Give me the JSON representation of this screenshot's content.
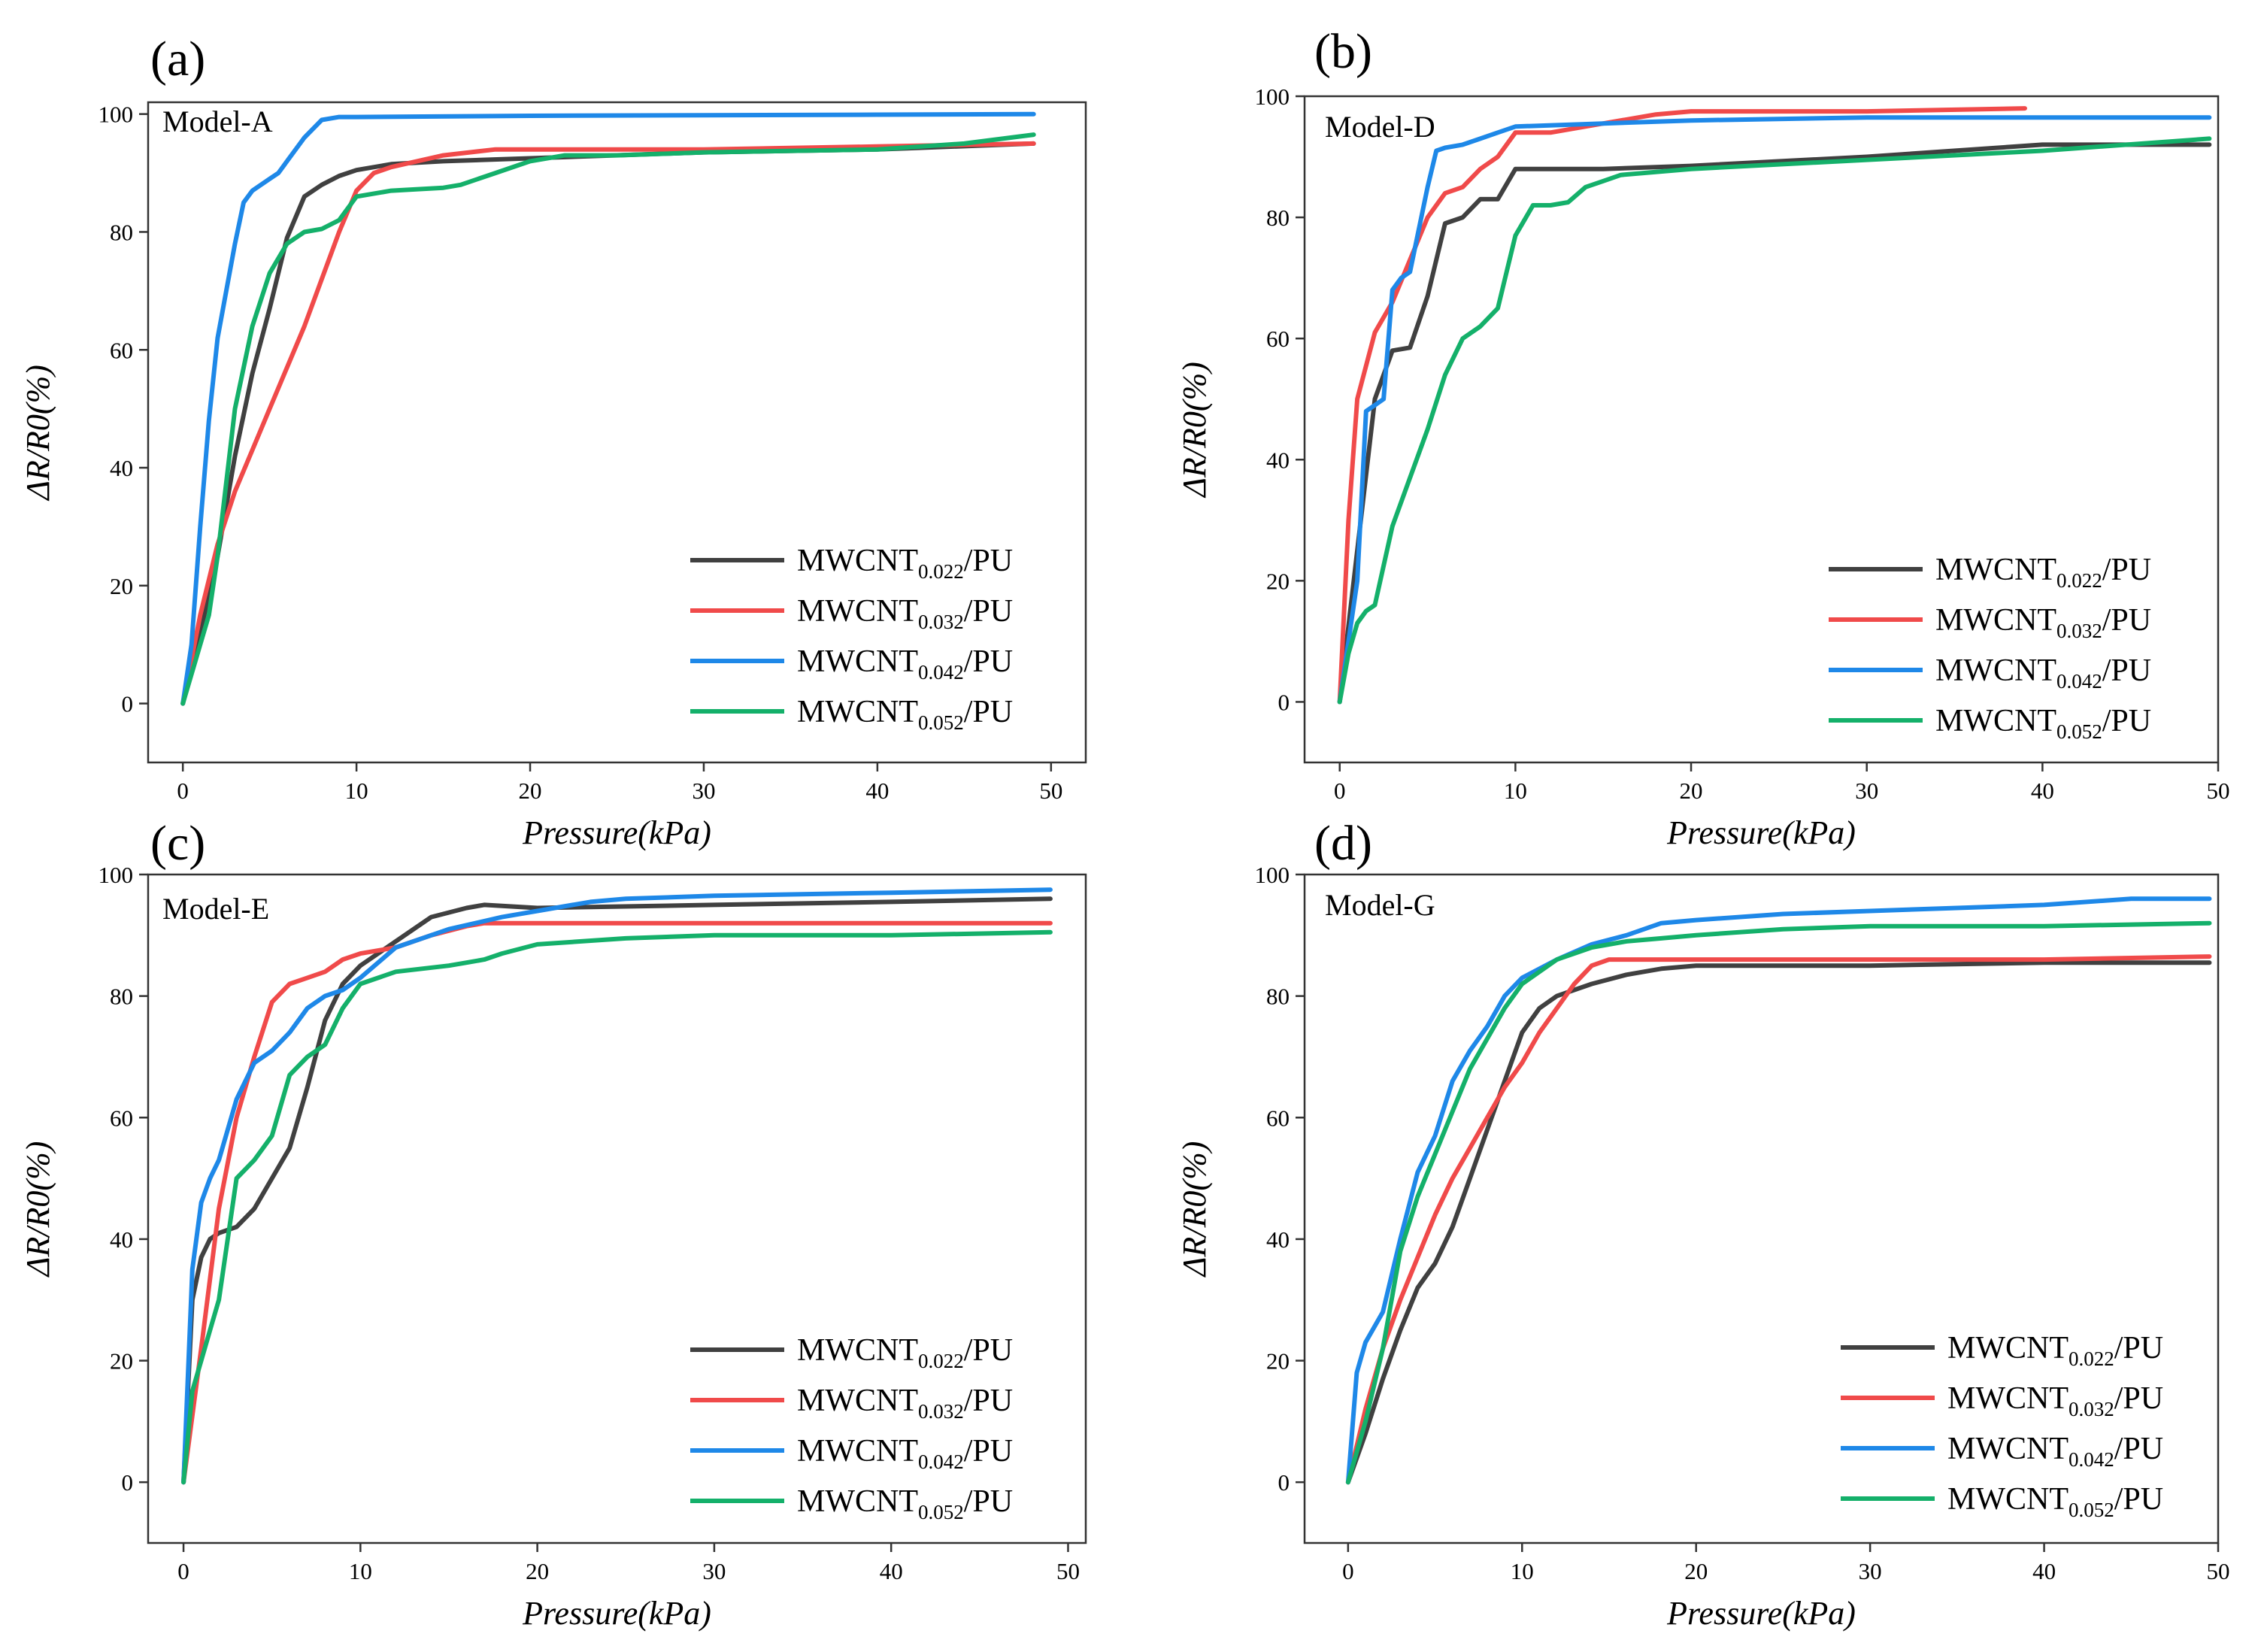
{
  "figure": {
    "legend_labels": [
      "MWCNT0.022/PU",
      "MWCNT0.032/PU",
      "MWCNT0.042/PU",
      "MWCNT0.052/PU"
    ],
    "series_colors": [
      "#404040",
      "#f04a4a",
      "#1e88e8",
      "#14b06a"
    ]
  },
  "chart_data": [
    {
      "type": "line",
      "panel": "(a)",
      "title": "Model-A",
      "xlabel": "Pressure(kPa)",
      "ylabel": "ΔR/R0(%)",
      "xlim": [
        -2,
        52
      ],
      "ylim": [
        -10,
        102
      ],
      "xticks": [
        0,
        10,
        20,
        30,
        40,
        50
      ],
      "yticks": [
        0,
        20,
        40,
        60,
        80,
        100
      ],
      "legend_position": "bottom-right",
      "series": [
        {
          "name": "MWCNT0.022/PU",
          "x": [
            0,
            1,
            2,
            3,
            4,
            5,
            6,
            7,
            8,
            9,
            10,
            12,
            15,
            20,
            30,
            40,
            49
          ],
          "y": [
            0,
            12,
            25,
            42,
            56,
            67,
            79,
            86,
            88,
            89.5,
            90.5,
            91.5,
            92,
            92.5,
            93.5,
            94,
            95
          ]
        },
        {
          "name": "MWCNT0.032/PU",
          "x": [
            0,
            1,
            2,
            3,
            4,
            5,
            6,
            7,
            8,
            9,
            10,
            11,
            12,
            15,
            18,
            20,
            30,
            40,
            49
          ],
          "y": [
            0,
            15,
            27,
            36,
            43,
            50,
            57,
            64,
            72,
            80,
            87,
            90,
            91,
            93,
            94,
            94,
            94,
            94.5,
            95
          ]
        },
        {
          "name": "MWCNT0.042/PU",
          "x": [
            0,
            0.5,
            1,
            1.5,
            2,
            2.5,
            3,
            3.5,
            4,
            5,
            5.5,
            6,
            7,
            8,
            9,
            10,
            20,
            30,
            40,
            49
          ],
          "y": [
            0,
            10,
            30,
            48,
            62,
            70,
            78,
            85,
            87,
            89,
            90,
            92,
            96,
            99,
            99.5,
            99.5,
            99.7,
            99.8,
            99.9,
            100
          ]
        },
        {
          "name": "MWCNT0.052/PU",
          "x": [
            0,
            1,
            1.5,
            2,
            3,
            4,
            5,
            6,
            7,
            8,
            9,
            10,
            12,
            15,
            16,
            18,
            20,
            22,
            25,
            30,
            40,
            45,
            49
          ],
          "y": [
            0,
            10,
            15,
            25,
            50,
            64,
            73,
            78,
            80,
            80.5,
            82,
            86,
            87,
            87.5,
            88,
            90,
            92,
            93,
            93,
            93.5,
            94,
            95,
            96.5
          ]
        }
      ]
    },
    {
      "type": "line",
      "panel": "(b)",
      "title": "Model-D",
      "xlabel": "Pressure(kPa)",
      "ylabel": "ΔR/R0(%)",
      "xlim": [
        -2,
        50
      ],
      "ylim": [
        -10,
        100
      ],
      "xticks": [
        0,
        10,
        20,
        30,
        40,
        50
      ],
      "yticks": [
        0,
        20,
        40,
        60,
        80,
        100
      ],
      "legend_position": "bottom-right",
      "series": [
        {
          "name": "MWCNT0.022/PU",
          "x": [
            0,
            1,
            2,
            3,
            4,
            5,
            6,
            7,
            8,
            9,
            10,
            15,
            20,
            30,
            40,
            49.5
          ],
          "y": [
            0,
            25,
            50,
            58,
            58.5,
            67,
            79,
            80,
            83,
            83,
            88,
            88,
            88.5,
            90,
            92,
            92
          ]
        },
        {
          "name": "MWCNT0.032/PU",
          "x": [
            0,
            0.5,
            1,
            2,
            3,
            4,
            5,
            6,
            7,
            8,
            9,
            10,
            12,
            15,
            18,
            20,
            30,
            39
          ],
          "y": [
            0,
            30,
            50,
            61,
            66,
            73,
            80,
            84,
            85,
            88,
            90,
            94,
            94,
            95.5,
            97,
            97.5,
            97.5,
            98
          ]
        },
        {
          "name": "MWCNT0.042/PU",
          "x": [
            0,
            1,
            1.5,
            2,
            2.5,
            3,
            3.5,
            4,
            5,
            5.5,
            6,
            7,
            8,
            9,
            10,
            15,
            20,
            30,
            40,
            49.5
          ],
          "y": [
            0,
            20,
            48,
            49,
            50,
            68,
            70,
            71,
            85,
            91,
            91.5,
            92,
            93,
            94,
            95,
            95.5,
            96,
            96.5,
            96.5,
            96.5
          ]
        },
        {
          "name": "MWCNT0.052/PU",
          "x": [
            0,
            0.5,
            1,
            1.5,
            2,
            3,
            4,
            5,
            6,
            7,
            8,
            9,
            10,
            11,
            12,
            13,
            14,
            15,
            16,
            20,
            30,
            40,
            49.5
          ],
          "y": [
            0,
            8,
            13,
            15,
            16,
            29,
            37,
            45,
            54,
            60,
            62,
            65,
            77,
            82,
            82,
            82.5,
            85,
            86,
            87,
            88,
            89.5,
            91,
            93
          ]
        }
      ]
    },
    {
      "type": "line",
      "panel": "(c)",
      "title": "Model-E",
      "xlabel": "Pressure(kPa)",
      "ylabel": "ΔR/R0(%)",
      "xlim": [
        -2,
        51
      ],
      "ylim": [
        -10,
        100
      ],
      "xticks": [
        0,
        10,
        20,
        30,
        40,
        50
      ],
      "yticks": [
        0,
        20,
        40,
        60,
        80,
        100
      ],
      "legend_position": "bottom-right",
      "series": [
        {
          "name": "MWCNT0.022/PU",
          "x": [
            0,
            0.5,
            1,
            1.5,
            2,
            3,
            4,
            5,
            6,
            7,
            8,
            9,
            10,
            12,
            14,
            16,
            17,
            20,
            30,
            40,
            49
          ],
          "y": [
            0,
            30,
            37,
            40,
            41,
            42,
            45,
            50,
            55,
            65,
            76,
            82,
            85,
            89,
            93,
            94.5,
            95,
            94.5,
            95,
            95.5,
            96
          ]
        },
        {
          "name": "MWCNT0.032/PU",
          "x": [
            0,
            1,
            2,
            3,
            4,
            5,
            6,
            7,
            8,
            9,
            10,
            12,
            14,
            16,
            17,
            20,
            30,
            40,
            49
          ],
          "y": [
            0,
            22,
            45,
            60,
            70,
            79,
            82,
            83,
            84,
            86,
            87,
            88,
            90,
            91.5,
            92,
            92,
            92,
            92,
            92
          ]
        },
        {
          "name": "MWCNT0.042/PU",
          "x": [
            0,
            0.5,
            1,
            1.5,
            2,
            3,
            4,
            5,
            6,
            7,
            8,
            9,
            10,
            12,
            15,
            18,
            20,
            23,
            25,
            30,
            40,
            49
          ],
          "y": [
            0,
            35,
            46,
            50,
            53,
            63,
            69,
            71,
            74,
            78,
            80,
            81,
            83,
            88,
            91,
            93,
            94,
            95.5,
            96,
            96.5,
            97,
            97.5
          ]
        },
        {
          "name": "MWCNT0.052/PU",
          "x": [
            0,
            0.5,
            1,
            1.5,
            2,
            3,
            4,
            5,
            6,
            7,
            8,
            9,
            10,
            12,
            15,
            16,
            17,
            18,
            20,
            25,
            30,
            40,
            49
          ],
          "y": [
            0,
            15,
            20,
            25,
            30,
            50,
            53,
            57,
            67,
            70,
            72,
            78,
            82,
            84,
            85,
            85.5,
            86,
            87,
            88.5,
            89.5,
            90,
            90,
            90.5
          ]
        }
      ]
    },
    {
      "type": "line",
      "panel": "(d)",
      "title": "Model-G",
      "xlabel": "Pressure(kPa)",
      "ylabel": "ΔR/R0(%)",
      "xlim": [
        -2.5,
        50
      ],
      "ylim": [
        -10,
        100
      ],
      "xticks": [
        0,
        10,
        20,
        30,
        40,
        50
      ],
      "yticks": [
        0,
        20,
        40,
        60,
        80,
        100
      ],
      "legend_position": "bottom-right",
      "series": [
        {
          "name": "MWCNT0.022/PU",
          "x": [
            0,
            1,
            2,
            3,
            4,
            5,
            6,
            7,
            8,
            9,
            10,
            11,
            12,
            14,
            16,
            18,
            20,
            30,
            40,
            49.5
          ],
          "y": [
            0,
            8,
            17,
            25,
            32,
            36,
            42,
            50,
            58,
            66,
            74,
            78,
            80,
            82,
            83.5,
            84.5,
            85,
            85,
            85.5,
            85.5
          ]
        },
        {
          "name": "MWCNT0.032/PU",
          "x": [
            0,
            1,
            2,
            3,
            4,
            5,
            6,
            7,
            8,
            9,
            10,
            11,
            12,
            13,
            14,
            15,
            16,
            20,
            30,
            40,
            49.5
          ],
          "y": [
            0,
            12,
            22,
            30,
            37,
            44,
            50,
            55,
            60,
            65,
            69,
            74,
            78,
            82,
            85,
            86,
            86,
            86,
            86,
            86,
            86.5
          ]
        },
        {
          "name": "MWCNT0.042/PU",
          "x": [
            0,
            0.5,
            1,
            2,
            3,
            4,
            5,
            6,
            7,
            8,
            9,
            10,
            12,
            14,
            16,
            18,
            20,
            25,
            30,
            35,
            40,
            45,
            49.5
          ],
          "y": [
            0,
            18,
            23,
            28,
            40,
            51,
            57,
            66,
            71,
            75,
            80,
            83,
            86,
            88.5,
            90,
            92,
            92.5,
            93.5,
            94,
            94.5,
            95,
            96,
            96
          ]
        },
        {
          "name": "MWCNT0.052/PU",
          "x": [
            0,
            1,
            2,
            3,
            4,
            5,
            6,
            7,
            8,
            9,
            10,
            12,
            14,
            16,
            18,
            20,
            25,
            30,
            40,
            49.5
          ],
          "y": [
            0,
            10,
            22,
            38,
            47,
            54,
            61,
            68,
            73,
            78,
            82,
            86,
            88,
            89,
            89.5,
            90,
            91,
            91.5,
            91.5,
            92
          ]
        }
      ]
    }
  ]
}
